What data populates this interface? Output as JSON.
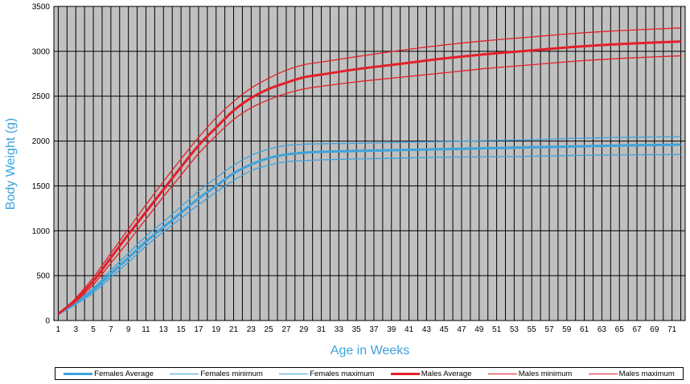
{
  "chart_data": {
    "type": "line",
    "xlabel": "Age in Weeks",
    "ylabel": "Body Weight (g)",
    "xlim": [
      1,
      72
    ],
    "ylim": [
      0,
      3500
    ],
    "yticks": [
      0,
      500,
      1000,
      1500,
      2000,
      2500,
      3000,
      3500
    ],
    "xticks": [
      1,
      3,
      5,
      7,
      9,
      11,
      13,
      15,
      17,
      19,
      21,
      23,
      25,
      27,
      29,
      31,
      33,
      35,
      37,
      39,
      41,
      43,
      45,
      47,
      49,
      51,
      53,
      55,
      57,
      59,
      61,
      63,
      65,
      67,
      69,
      71
    ],
    "grid": true,
    "background": "#c0c0c0",
    "legend_position": "bottom",
    "x": [
      1,
      2,
      3,
      5,
      7,
      9,
      11,
      13,
      15,
      17,
      19,
      21,
      23,
      25,
      27,
      29,
      31,
      35,
      40,
      45,
      50,
      55,
      60,
      65,
      72
    ],
    "series": [
      {
        "name": "Females Average",
        "color": "#3ea3dc",
        "width": 3,
        "values": [
          75,
          130,
          190,
          340,
          520,
          700,
          880,
          1040,
          1200,
          1360,
          1500,
          1640,
          1740,
          1810,
          1850,
          1870,
          1880,
          1890,
          1900,
          1910,
          1920,
          1930,
          1940,
          1950,
          1960
        ]
      },
      {
        "name": "Females minimum",
        "color": "#3ea3dc",
        "width": 1.3,
        "values": [
          75,
          125,
          180,
          310,
          480,
          650,
          830,
          990,
          1140,
          1290,
          1430,
          1560,
          1670,
          1730,
          1770,
          1780,
          1790,
          1800,
          1810,
          1820,
          1825,
          1830,
          1840,
          1845,
          1850
        ]
      },
      {
        "name": "Females maximum",
        "color": "#3ea3dc",
        "width": 1.3,
        "values": [
          75,
          135,
          200,
          360,
          560,
          750,
          940,
          1100,
          1270,
          1440,
          1590,
          1730,
          1840,
          1910,
          1950,
          1965,
          1970,
          1975,
          1985,
          1995,
          2005,
          2015,
          2030,
          2040,
          2050
        ]
      },
      {
        "name": "Males Average",
        "color": "#e3202a",
        "width": 3,
        "values": [
          75,
          150,
          230,
          440,
          700,
          960,
          1210,
          1460,
          1710,
          1950,
          2150,
          2340,
          2480,
          2580,
          2650,
          2710,
          2740,
          2800,
          2860,
          2920,
          2970,
          3010,
          3050,
          3080,
          3110
        ]
      },
      {
        "name": "Males minimum",
        "color": "#e3202a",
        "width": 1.3,
        "values": [
          75,
          140,
          210,
          400,
          640,
          880,
          1130,
          1380,
          1620,
          1860,
          2060,
          2240,
          2370,
          2460,
          2530,
          2580,
          2610,
          2660,
          2710,
          2760,
          2810,
          2850,
          2890,
          2920,
          2950
        ]
      },
      {
        "name": "Males maximum",
        "color": "#e3202a",
        "width": 1.3,
        "values": [
          75,
          160,
          250,
          480,
          750,
          1020,
          1290,
          1550,
          1800,
          2040,
          2260,
          2440,
          2590,
          2700,
          2790,
          2850,
          2880,
          2940,
          3010,
          3070,
          3120,
          3160,
          3200,
          3230,
          3260
        ]
      }
    ]
  }
}
